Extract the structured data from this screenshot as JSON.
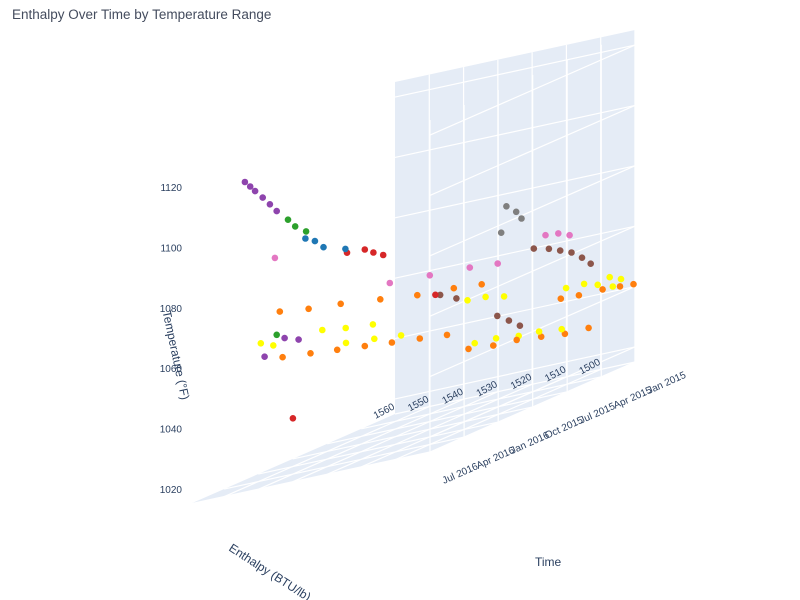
{
  "chart_data": {
    "type": "scatter",
    "title": "Enthalpy Over Time by Temperature Range",
    "projection": "3d",
    "axes": {
      "x": {
        "label": "Enthalpy (BTU/lb)",
        "range": [
          1500,
          1570
        ],
        "ticks": [
          "1500",
          "1510",
          "1520",
          "1530",
          "1540",
          "1550",
          "1560"
        ]
      },
      "y": {
        "label": "Time",
        "range": [
          "2015-01-01",
          "2016-07-01"
        ],
        "ticks": [
          "Jan 2015",
          "Apr 2015",
          "Jul 2015",
          "Oct 2015",
          "Jan 2016",
          "Apr 2016",
          "Jul 2016"
        ]
      },
      "z": {
        "label": "Temperature (°F)",
        "range": [
          1015,
          1125
        ],
        "ticks": [
          "1020",
          "1040",
          "1060",
          "1080",
          "1100",
          "1120"
        ]
      }
    },
    "background_color": "#e5ecf6",
    "grid_color": "#ffffff",
    "series": [
      {
        "color": "#ffff00",
        "points": [
          [
            1502,
            "2015-01-20",
            1044
          ],
          [
            1503,
            "2015-02-10",
            1046
          ],
          [
            1504,
            "2015-03-05",
            1045
          ],
          [
            1505,
            "2015-04-01",
            1047
          ],
          [
            1501,
            "2015-02-20",
            1043
          ],
          [
            1506,
            "2015-05-10",
            1048
          ],
          [
            1518,
            "2015-02-01",
            1032
          ],
          [
            1520,
            "2015-03-15",
            1034
          ],
          [
            1522,
            "2015-04-20",
            1035
          ],
          [
            1524,
            "2015-06-01",
            1037
          ],
          [
            1526,
            "2015-07-10",
            1038
          ],
          [
            1515,
            "2015-08-01",
            1052
          ],
          [
            1517,
            "2015-09-01",
            1054
          ],
          [
            1519,
            "2015-10-01",
            1055
          ],
          [
            1535,
            "2015-11-01",
            1049
          ],
          [
            1538,
            "2015-12-15",
            1051
          ],
          [
            1541,
            "2016-02-01",
            1053
          ],
          [
            1530,
            "2016-03-01",
            1058
          ],
          [
            1533,
            "2016-04-15",
            1060
          ],
          [
            1536,
            "2016-05-20",
            1062
          ],
          [
            1548,
            "2016-06-10",
            1061
          ],
          [
            1550,
            "2016-06-25",
            1063
          ]
        ]
      },
      {
        "color": "#ff7f0e",
        "points": [
          [
            1500,
            "2015-01-05",
            1041
          ],
          [
            1501,
            "2015-02-01",
            1042
          ],
          [
            1503,
            "2015-03-01",
            1043
          ],
          [
            1505,
            "2015-04-15",
            1044
          ],
          [
            1507,
            "2015-05-15",
            1045
          ],
          [
            1512,
            "2015-01-15",
            1030
          ],
          [
            1514,
            "2015-03-01",
            1031
          ],
          [
            1516,
            "2015-04-15",
            1033
          ],
          [
            1518,
            "2015-06-01",
            1035
          ],
          [
            1520,
            "2015-07-15",
            1036
          ],
          [
            1522,
            "2015-09-01",
            1038
          ],
          [
            1525,
            "2015-10-01",
            1045
          ],
          [
            1528,
            "2015-11-15",
            1047
          ],
          [
            1531,
            "2016-01-01",
            1049
          ],
          [
            1534,
            "2016-02-15",
            1051
          ],
          [
            1537,
            "2016-04-01",
            1053
          ],
          [
            1540,
            "2016-05-15",
            1055
          ],
          [
            1543,
            "2016-07-01",
            1057
          ],
          [
            1520,
            "2015-08-15",
            1058
          ],
          [
            1523,
            "2015-10-01",
            1060
          ],
          [
            1527,
            "2015-12-01",
            1062
          ],
          [
            1531,
            "2016-02-01",
            1065
          ],
          [
            1536,
            "2016-04-01",
            1068
          ],
          [
            1540,
            "2016-05-20",
            1070
          ],
          [
            1545,
            "2016-06-20",
            1072
          ]
        ]
      },
      {
        "color": "#8c564b",
        "points": [
          [
            1508,
            "2015-02-15",
            1052
          ],
          [
            1509,
            "2015-03-01",
            1055
          ],
          [
            1510,
            "2015-03-20",
            1058
          ],
          [
            1511,
            "2015-04-10",
            1060
          ],
          [
            1512,
            "2015-05-01",
            1062
          ],
          [
            1513,
            "2015-06-01",
            1064
          ],
          [
            1515,
            "2015-06-20",
            1040
          ],
          [
            1516,
            "2015-07-10",
            1043
          ],
          [
            1517,
            "2015-08-01",
            1046
          ],
          [
            1524,
            "2015-09-15",
            1056
          ],
          [
            1526,
            "2015-10-10",
            1059
          ]
        ]
      },
      {
        "color": "#e377c2",
        "points": [
          [
            1510,
            "2015-03-25",
            1064
          ],
          [
            1511,
            "2015-04-15",
            1066
          ],
          [
            1512,
            "2015-05-10",
            1067
          ],
          [
            1522,
            "2015-06-15",
            1062
          ],
          [
            1525,
            "2015-08-01",
            1064
          ],
          [
            1530,
            "2015-10-01",
            1066
          ],
          [
            1535,
            "2015-12-01",
            1068
          ],
          [
            1547,
            "2016-06-15",
            1090
          ]
        ]
      },
      {
        "color": "#7f7f7f",
        "points": [
          [
            1520,
            "2015-05-01",
            1074
          ],
          [
            1520,
            "2015-05-15",
            1077
          ],
          [
            1521,
            "2015-06-01",
            1080
          ],
          [
            1521,
            "2015-06-15",
            1072
          ]
        ]
      },
      {
        "color": "#8e44ad",
        "points": [
          [
            1548,
            "2016-06-01",
            1105
          ],
          [
            1549,
            "2016-06-10",
            1108
          ],
          [
            1550,
            "2016-06-20",
            1111
          ],
          [
            1551,
            "2016-07-01",
            1114
          ],
          [
            1552,
            "2016-07-05",
            1116
          ],
          [
            1553,
            "2016-07-10",
            1118
          ],
          [
            1545,
            "2016-05-01",
            1060
          ],
          [
            1547,
            "2016-05-20",
            1062
          ],
          [
            1550,
            "2016-06-15",
            1058
          ]
        ]
      },
      {
        "color": "#2ca02c",
        "points": [
          [
            1545,
            "2016-05-10",
            1098
          ],
          [
            1546,
            "2016-05-20",
            1101
          ],
          [
            1544,
            "2016-04-20",
            1095
          ],
          [
            1548,
            "2016-06-01",
            1064
          ]
        ]
      },
      {
        "color": "#1f77b4",
        "points": [
          [
            1541,
            "2016-04-01",
            1088
          ],
          [
            1542,
            "2016-04-15",
            1091
          ],
          [
            1543,
            "2016-05-01",
            1093
          ],
          [
            1538,
            "2016-03-01",
            1085
          ]
        ]
      },
      {
        "color": "#d62728",
        "points": [
          [
            1532,
            "2016-01-15",
            1079
          ],
          [
            1533,
            "2016-02-01",
            1081
          ],
          [
            1534,
            "2016-02-15",
            1083
          ],
          [
            1536,
            "2016-03-15",
            1084
          ],
          [
            1525,
            "2015-11-01",
            1060
          ],
          [
            1540,
            "2016-07-01",
            1036
          ]
        ]
      }
    ]
  }
}
